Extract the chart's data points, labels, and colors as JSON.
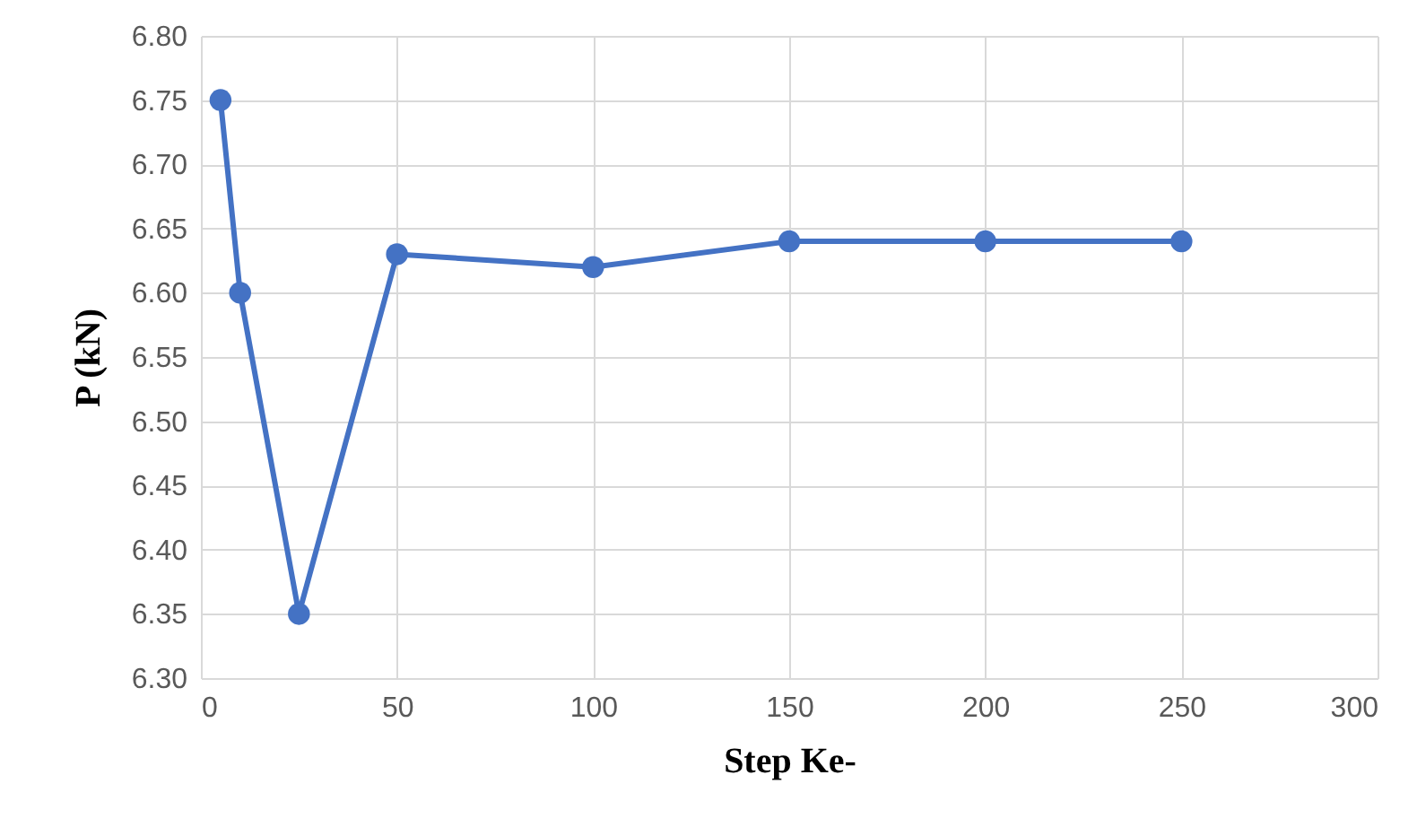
{
  "chart_data": {
    "type": "line",
    "xlabel": "Step Ke-",
    "ylabel": "P (kN)",
    "x": [
      5,
      10,
      25,
      50,
      100,
      150,
      200,
      250
    ],
    "series": [
      {
        "color": "#4472c4",
        "values": [
          6.75,
          6.6,
          6.35,
          6.63,
          6.62,
          6.64,
          6.64,
          6.64
        ]
      }
    ],
    "xlim": [
      0,
      300
    ],
    "xticks": [
      0,
      50,
      100,
      150,
      200,
      250,
      300
    ],
    "ylim": [
      6.3,
      6.8
    ],
    "yticks": [
      {
        "value": 6.3,
        "label": "6.30"
      },
      {
        "value": 6.35,
        "label": "6.35"
      },
      {
        "value": 6.4,
        "label": "6.40"
      },
      {
        "value": 6.45,
        "label": "6.45"
      },
      {
        "value": 6.5,
        "label": "6.50"
      },
      {
        "value": 6.55,
        "label": "6.55"
      },
      {
        "value": 6.6,
        "label": "6.60"
      },
      {
        "value": 6.65,
        "label": "6.65"
      },
      {
        "value": 6.7,
        "label": "6.70"
      },
      {
        "value": 6.75,
        "label": "6.75"
      },
      {
        "value": 6.8,
        "label": "6.80"
      }
    ],
    "grid": true,
    "marker": "circle",
    "line_style": "solid"
  }
}
